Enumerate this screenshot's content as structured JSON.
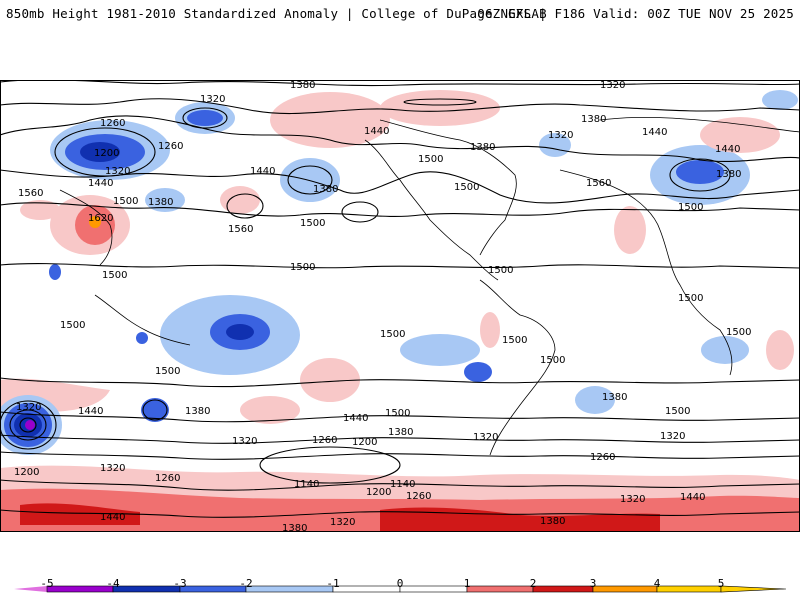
{
  "header": {
    "title": "850mb Height 1981-2010 Standardized Anomaly | College of DuPage NEXLAB",
    "run_info": "06Z GFS | F186 Valid: 00Z TUE NOV 25 2025"
  },
  "map": {
    "contour_labels": [
      "1320",
      "1380",
      "1260",
      "1320",
      "1260",
      "1200",
      "1320",
      "1440",
      "1560",
      "1500",
      "1380",
      "1620",
      "1560",
      "1500",
      "1440",
      "1380",
      "1440",
      "1500",
      "1500",
      "1380",
      "1320",
      "1320",
      "1380",
      "1440",
      "1560",
      "1440",
      "1500",
      "1380",
      "1500",
      "1500",
      "1500",
      "1500",
      "1500",
      "1500",
      "1500",
      "1500",
      "1500",
      "1500",
      "1320",
      "1440",
      "1380",
      "1440",
      "1500",
      "1380",
      "1320",
      "1200",
      "1260",
      "1320",
      "1320",
      "1260",
      "1200",
      "1140",
      "1140",
      "1200",
      "1260",
      "1320",
      "1380",
      "1440",
      "1260",
      "1380",
      "1320",
      "1500",
      "1380",
      "1440",
      "1320"
    ]
  },
  "colorbar": {
    "ticks": [
      "-5",
      "-4",
      "-3",
      "-2",
      "-1",
      "0",
      "1",
      "2",
      "3",
      "4",
      "5"
    ],
    "colors": [
      "#e070e0",
      "#9900cc",
      "#1030b0",
      "#3a62e0",
      "#a8c8f4",
      "#ffffff",
      "#f8c8c8",
      "#f07070",
      "#d01818",
      "#ff9900",
      "#ffd000"
    ]
  }
}
